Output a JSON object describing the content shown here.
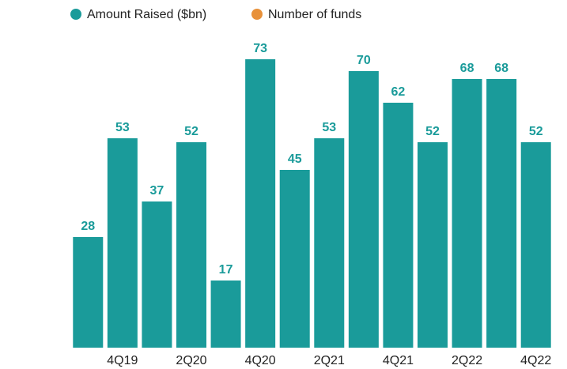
{
  "chart_data": {
    "type": "bar",
    "legend": [
      {
        "name": "Amount Raised ($bn)",
        "color": "#1a9b9a"
      },
      {
        "name": "Number of funds",
        "color": "#e8913a"
      }
    ],
    "categories": [
      null,
      "4Q19",
      null,
      "2Q20",
      null,
      "4Q20",
      null,
      "2Q21",
      null,
      "4Q21",
      null,
      "2Q22",
      null,
      "4Q22"
    ],
    "values": [
      28,
      53,
      37,
      52,
      17,
      73,
      45,
      53,
      70,
      62,
      52,
      68,
      68,
      52
    ],
    "color": "#1a9b9a",
    "ylim": [
      0,
      80
    ]
  }
}
